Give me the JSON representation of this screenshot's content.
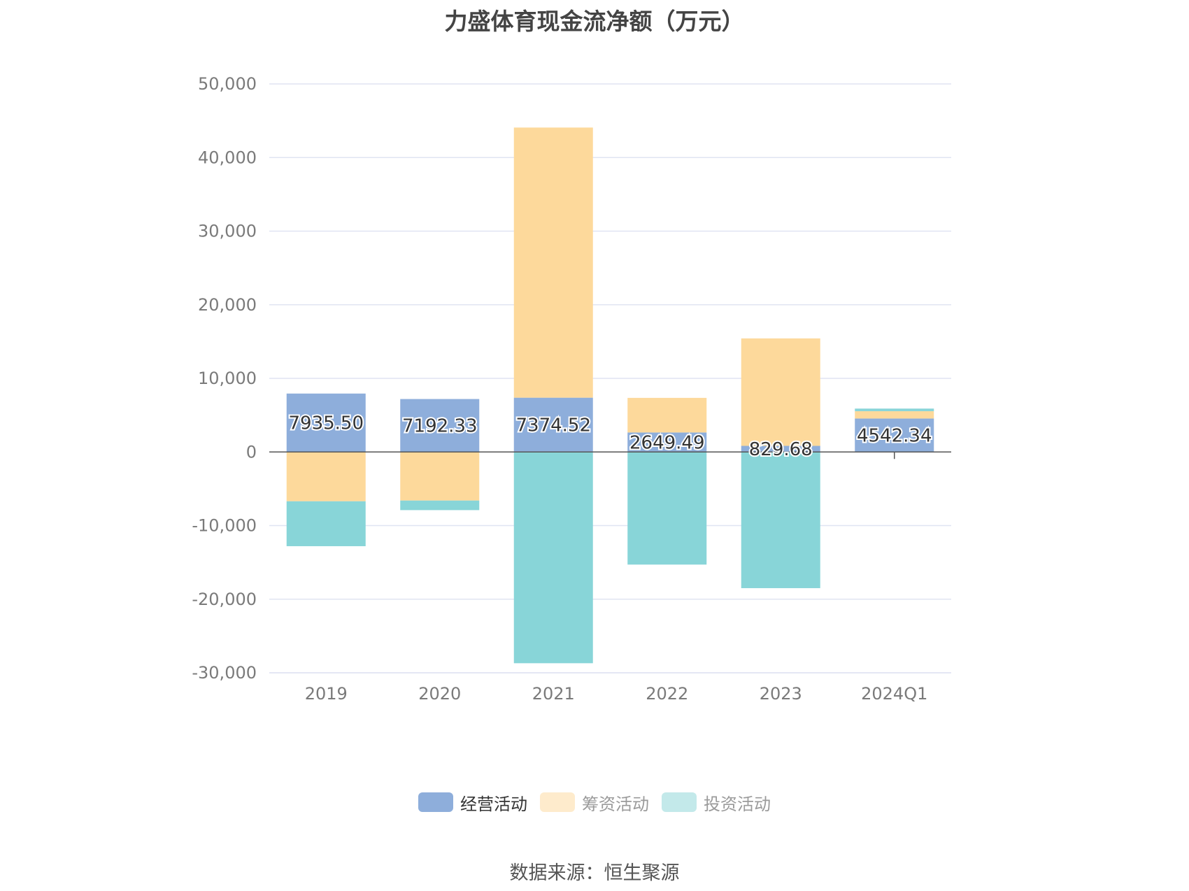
{
  "chart_data": {
    "type": "bar",
    "stacked": true,
    "title": "力盛体育现金流净额（万元）",
    "categories": [
      "2019",
      "2020",
      "2021",
      "2022",
      "2023",
      "2024Q1"
    ],
    "ylim": [
      -30000,
      50000
    ],
    "yticks": [
      "-30,000",
      "-20,000",
      "-10,000",
      "0",
      "10,000",
      "20,000",
      "30,000",
      "40,000",
      "50,000"
    ],
    "ytick_values": [
      -30000,
      -20000,
      -10000,
      0,
      10000,
      20000,
      30000,
      40000,
      50000
    ],
    "grid": true,
    "legend_position": "bottom",
    "series": [
      {
        "name": "经营活动",
        "color": "#8eaedb",
        "values": [
          7935.5,
          7192.33,
          7374.52,
          2649.49,
          829.68,
          4542.34
        ],
        "labels": [
          "7935.50",
          "7192.33",
          "7374.52",
          "2649.49",
          "829.68",
          "4542.34"
        ]
      },
      {
        "name": "筹资活动",
        "color": "#fdd99b",
        "values": [
          -6700,
          -6600,
          36700,
          4700,
          14600,
          1000
        ]
      },
      {
        "name": "投资活动",
        "color": "#88d5d8",
        "values": [
          -6100,
          -1300,
          -28700,
          -15300,
          -18500,
          350
        ]
      }
    ]
  },
  "legend": [
    {
      "label": "经营活动",
      "color": "#8eaedb",
      "active": true
    },
    {
      "label": "筹资活动",
      "color": "#feebcc",
      "active": false
    },
    {
      "label": "投资活动",
      "color": "#c3e9ea",
      "active": false
    }
  ],
  "source": "数据来源：恒生聚源"
}
